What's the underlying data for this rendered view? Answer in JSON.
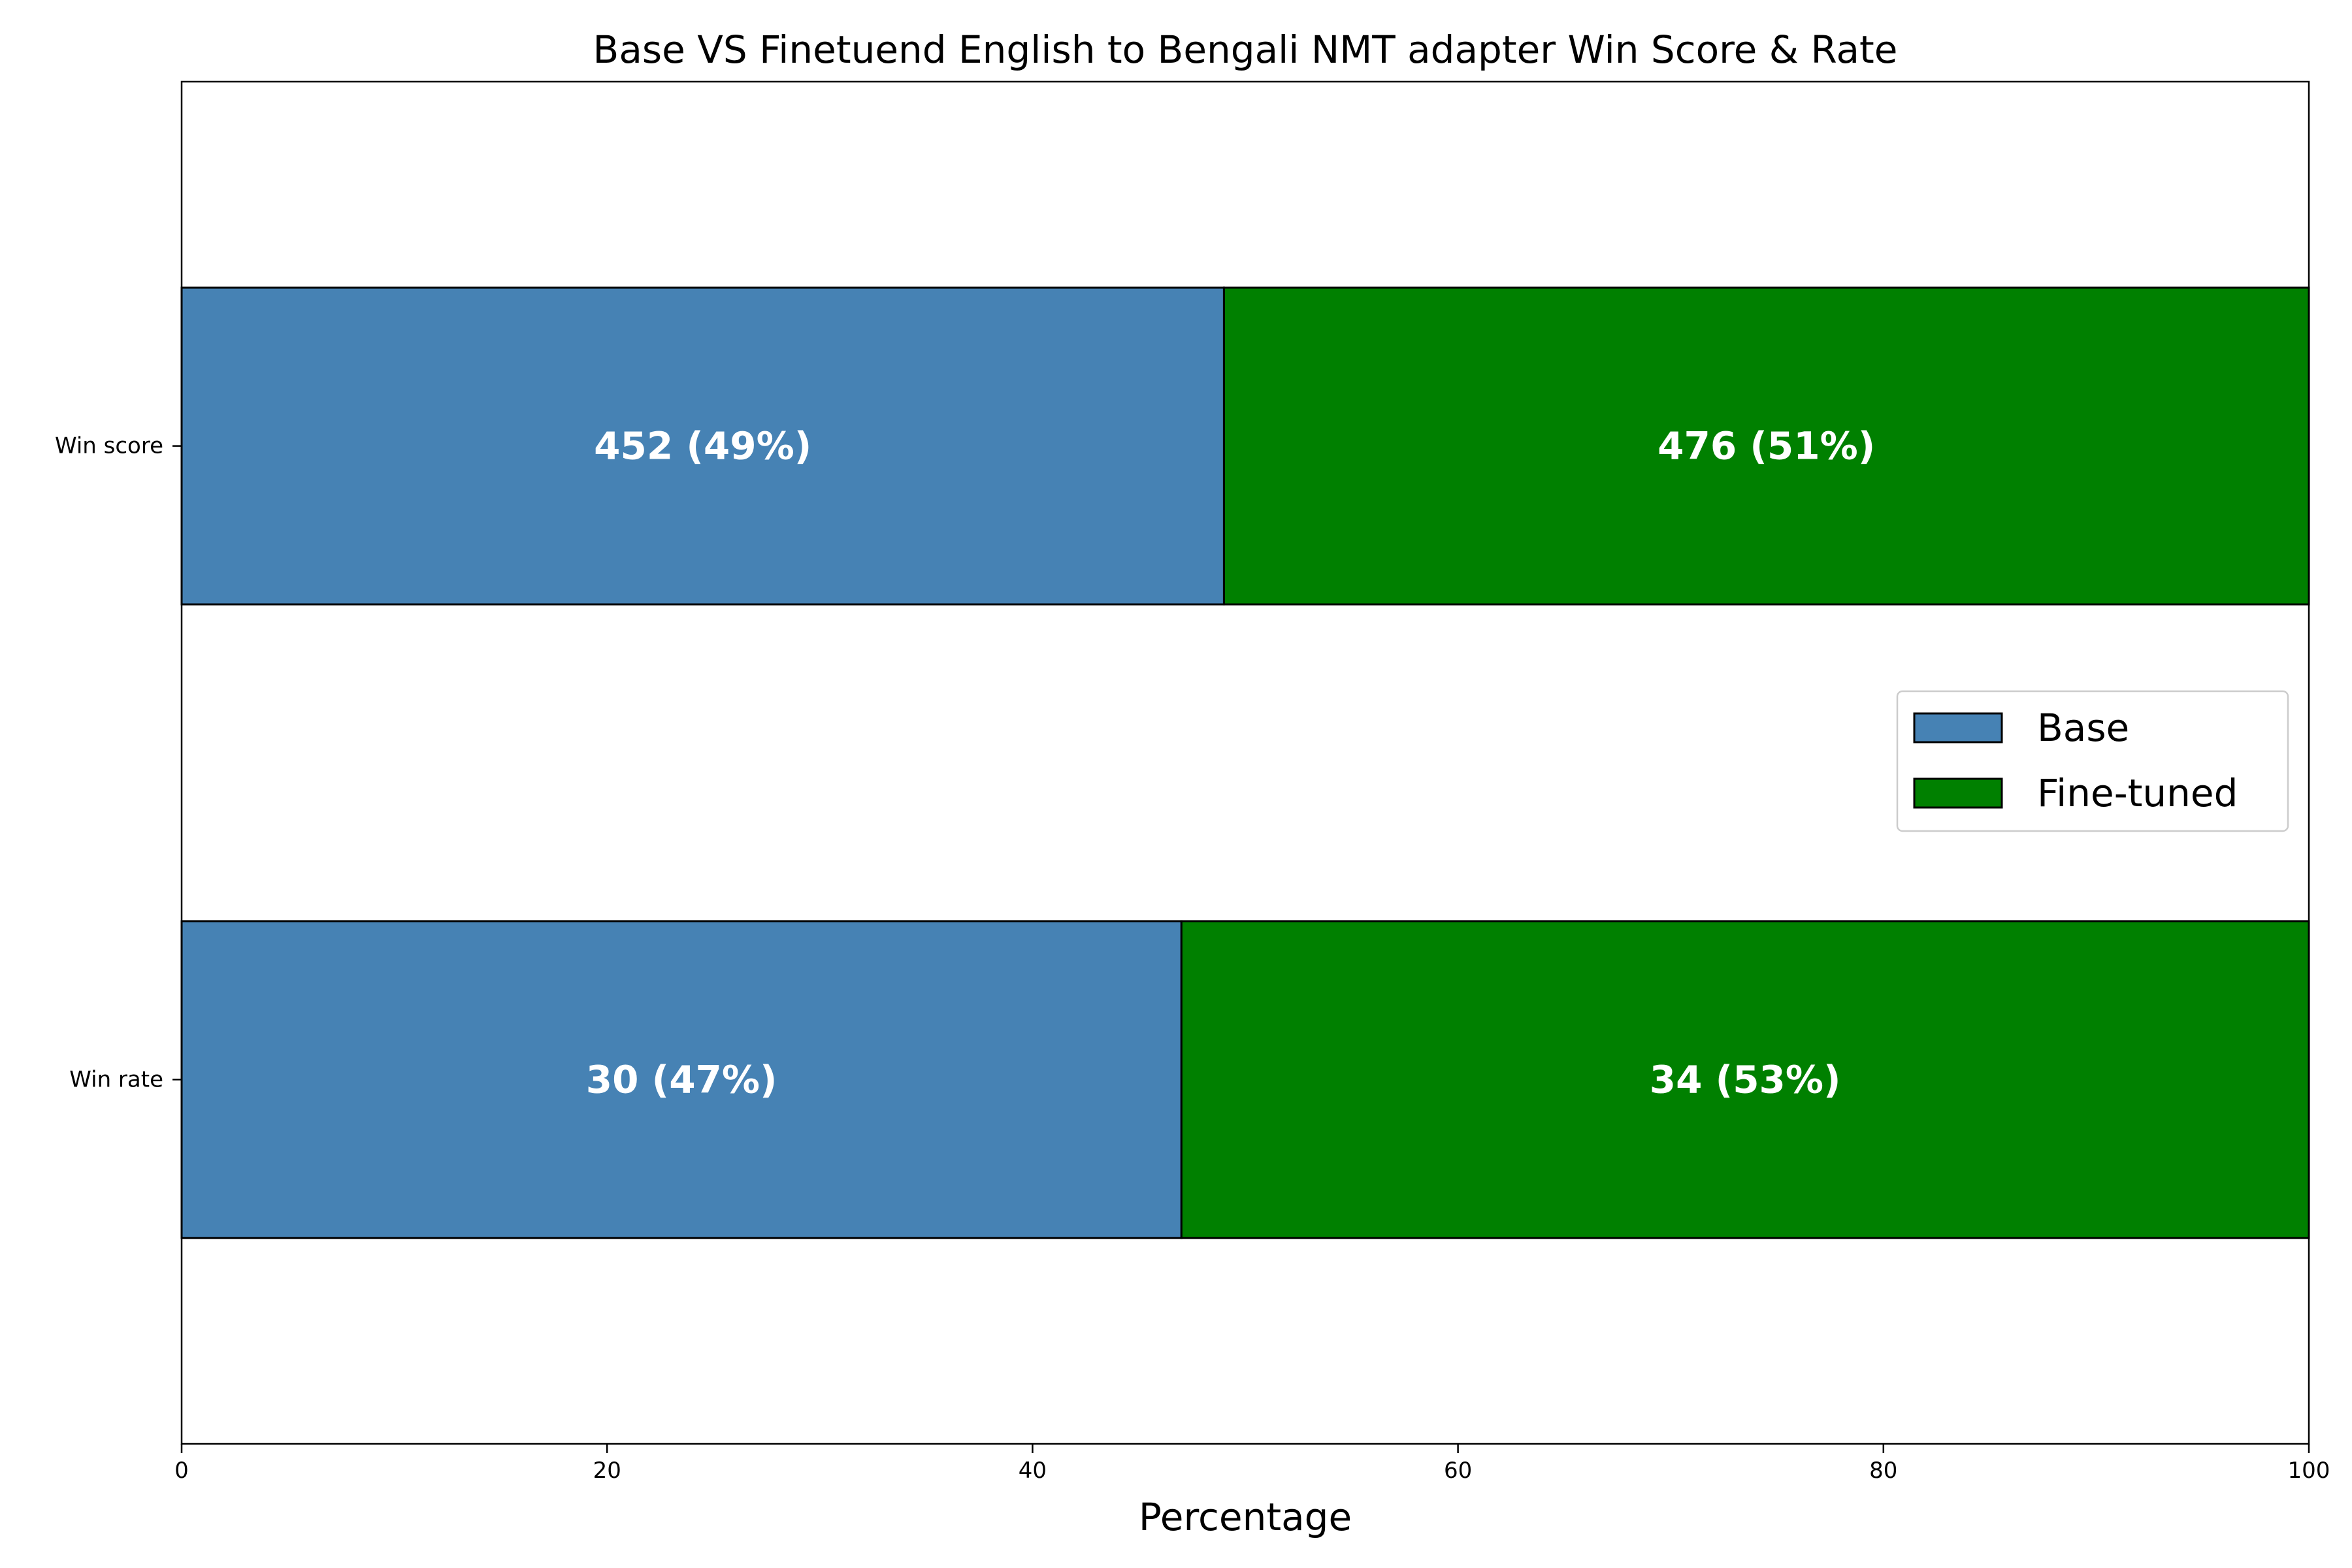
{
  "chart_data": {
    "type": "bar",
    "orientation": "horizontal",
    "stacked": true,
    "title": "Base VS Finetuend English to Bengali NMT adapter Win Score & Rate",
    "xlabel": "Percentage",
    "ylabel": "",
    "xlim": [
      0,
      100
    ],
    "xticks": [
      "0",
      "20",
      "40",
      "60",
      "80",
      "100"
    ],
    "categories": [
      "Win score",
      "Win rate"
    ],
    "series": [
      {
        "name": "Base",
        "color": "#4682b4",
        "values": [
          49,
          47
        ],
        "labels": [
          "452 (49%)",
          "30 (47%)"
        ]
      },
      {
        "name": "Fine-tuned",
        "color": "#008000",
        "values": [
          51,
          53
        ],
        "labels": [
          "476 (51%)",
          "34 (53%)"
        ]
      }
    ],
    "grid": false,
    "legend_position": "center-right"
  }
}
